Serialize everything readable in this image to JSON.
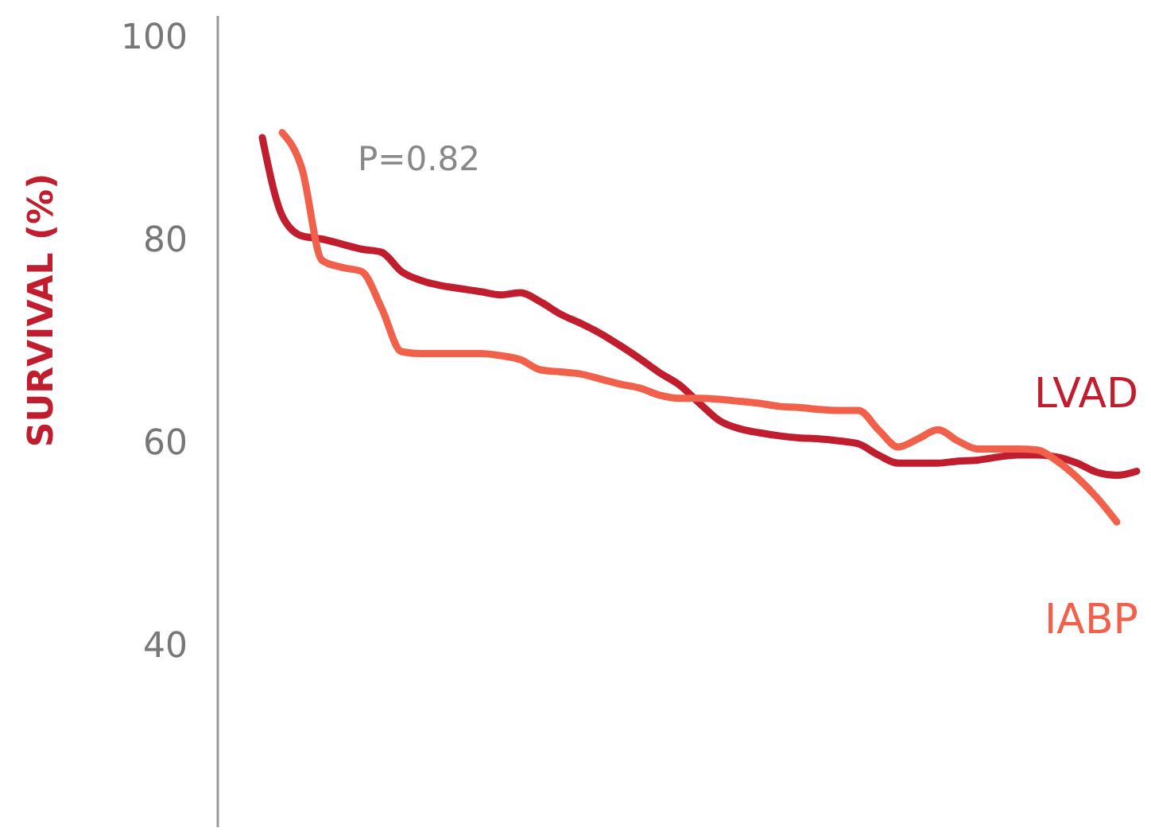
{
  "chart_data": {
    "type": "line",
    "ylabel": "SURVIVAL (%)",
    "ylim": [
      22,
      102
    ],
    "yticks": [
      40,
      60,
      80,
      100
    ],
    "grid": false,
    "legend": false,
    "marker": "none",
    "line_style": "solid",
    "annotations": [
      "P=0.82"
    ],
    "categories": [
      null,
      null,
      null,
      null,
      null,
      null,
      null,
      null,
      null,
      null,
      null,
      null,
      null,
      null,
      null,
      null,
      null,
      null,
      null,
      null,
      null,
      null,
      null,
      null,
      null,
      null,
      null,
      null,
      null,
      null,
      null,
      null,
      null,
      null,
      null,
      null,
      null,
      null,
      null,
      null,
      null,
      null,
      null,
      null,
      null
    ],
    "series": [
      {
        "name": "LVAD",
        "color": "#c01d2e",
        "values": [
          90,
          82.3,
          80.3,
          80,
          79.5,
          79,
          78.7,
          76.8,
          75.9,
          75.4,
          75.1,
          74.8,
          74.5,
          74.7,
          73.8,
          72.6,
          71.7,
          70.7,
          69.5,
          68.2,
          66.8,
          65.6,
          63.8,
          62.1,
          61.3,
          60.9,
          60.6,
          60.4,
          60.3,
          60.1,
          59.8,
          58.7,
          57.9,
          57.9,
          57.9,
          58.1,
          58.2,
          58.5,
          58.7,
          58.7,
          58.5,
          57.9,
          57,
          56.7,
          57.1
        ]
      },
      {
        "name": "IABP",
        "color": "#f0604a",
        "values": [
          null,
          90.5,
          86.9,
          77.9,
          77.2,
          76.8,
          73.2,
          68.9,
          68.7,
          68.7,
          68.7,
          68.7,
          68.5,
          68.1,
          67.1,
          66.9,
          66.7,
          66.2,
          65.7,
          65.3,
          64.6,
          64.3,
          64.3,
          64.2,
          64,
          63.8,
          63.5,
          63.4,
          63.2,
          63.1,
          63.1,
          61.2,
          59.5,
          60.3,
          61.2,
          60.1,
          59.3,
          59.3,
          59.3,
          59.2,
          58.1,
          56.5,
          54.5,
          52.1,
          null
        ]
      }
    ]
  }
}
